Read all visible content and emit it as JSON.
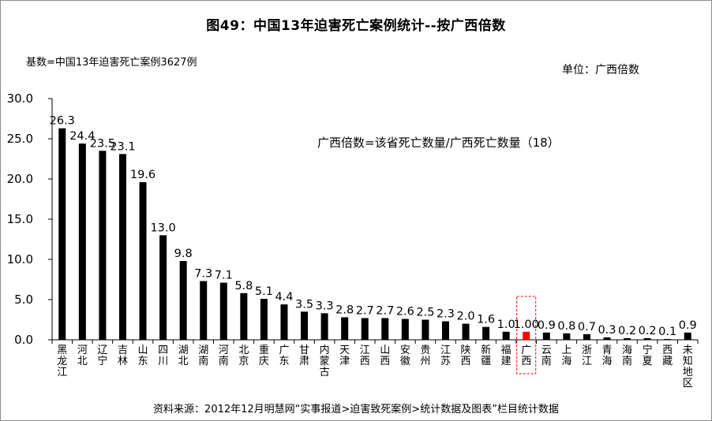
{
  "chart_data": {
    "type": "bar",
    "title": "图49：中国13年迫害死亡案例统计--按广西倍数",
    "base_note": "基数=中国13年迫害死亡案例3627例",
    "unit_note": "单位：广西倍数",
    "formula_note": "广西倍数=该省死亡数量/广西死亡数量（18）",
    "source_note": "资料来源：2012年12月明慧网“实事报道>迫害致死案例>统计数据及图表”栏目统计数据",
    "xlabel": "",
    "ylabel": "",
    "ylim": [
      0,
      30
    ],
    "yticks": [
      "0.0",
      "5.0",
      "10.0",
      "15.0",
      "20.0",
      "25.0",
      "30.0"
    ],
    "grid": false,
    "legend": "none",
    "categories": [
      "黑龙江",
      "河北",
      "辽宁",
      "吉林",
      "山东",
      "四川",
      "湖北",
      "湖南",
      "河南",
      "北京",
      "重庆",
      "广东",
      "甘肃",
      "内蒙古",
      "天津",
      "江西",
      "山西",
      "安徽",
      "贵州",
      "江苏",
      "陕西",
      "新疆",
      "福建",
      "广西",
      "云南",
      "上海",
      "浙江",
      "青海",
      "海南",
      "宁夏",
      "西藏",
      "未知地区"
    ],
    "values": [
      26.3,
      24.4,
      23.5,
      23.1,
      19.6,
      13.0,
      9.8,
      7.3,
      7.1,
      5.8,
      5.1,
      4.4,
      3.5,
      3.3,
      2.8,
      2.7,
      2.7,
      2.6,
      2.5,
      2.3,
      2.0,
      1.6,
      1.0,
      1.0,
      0.9,
      0.8,
      0.7,
      0.3,
      0.2,
      0.2,
      0.1,
      0.9
    ],
    "value_labels": [
      "26.3",
      "24.4",
      "23.5",
      "23.1",
      "19.6",
      "13.0",
      "9.8",
      "7.3",
      "7.1",
      "5.8",
      "5.1",
      "4.4",
      "3.5",
      "3.3",
      "2.8",
      "2.7",
      "2.7",
      "2.6",
      "2.5",
      "2.3",
      "2.0",
      "1.6",
      "1.0",
      "1.00",
      "0.9",
      "0.8",
      "0.7",
      "0.3",
      "0.2",
      "0.2",
      "0.1",
      "0.9"
    ],
    "highlight_category": "广西",
    "colors": {
      "bar": "#000000",
      "highlight": "#ff0000",
      "highlight_box": "#ff0000"
    }
  }
}
